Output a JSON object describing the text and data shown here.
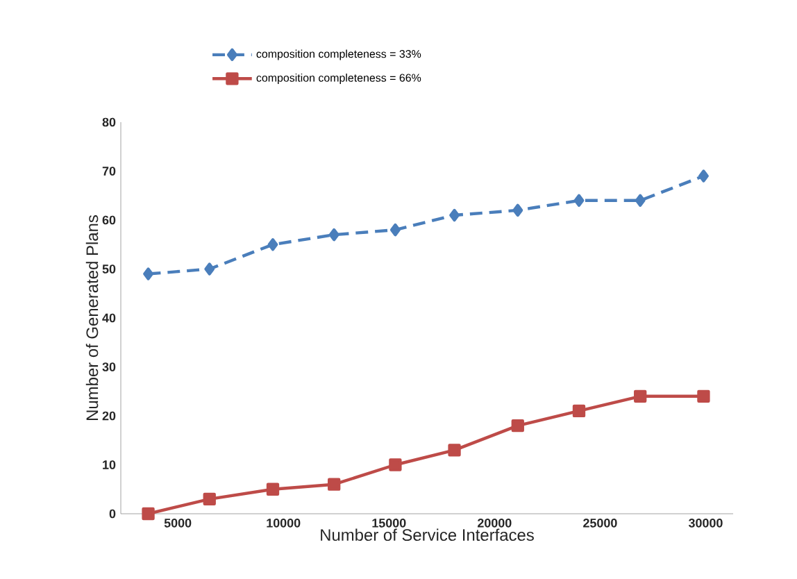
{
  "chart_data": {
    "type": "line",
    "xlabel": "Number of Service Interfaces",
    "ylabel": "Number of Generated Plans",
    "x": [
      3600,
      6500,
      9500,
      12400,
      15300,
      18100,
      21100,
      24000,
      26900,
      29900
    ],
    "series": [
      {
        "name": "composition completeness = 33%",
        "color": "#4a7ebb",
        "values": [
          49,
          50,
          55,
          57,
          58,
          61,
          62,
          64,
          64,
          69
        ],
        "marker": "diamond",
        "line_style": "dashed"
      },
      {
        "name": "composition completeness = 66%",
        "color": "#be4b48",
        "values": [
          0,
          3,
          5,
          6,
          10,
          13,
          18,
          21,
          24,
          24
        ],
        "marker": "square",
        "line_style": "solid"
      }
    ],
    "xlim": [
      2300,
      31300
    ],
    "xticks": [
      5000,
      10000,
      15000,
      20000,
      25000,
      30000
    ],
    "ylim": [
      0,
      80
    ],
    "yticks": [
      0,
      10,
      20,
      30,
      40,
      50,
      60,
      70,
      80
    ],
    "grid": false,
    "legend": "top left"
  }
}
